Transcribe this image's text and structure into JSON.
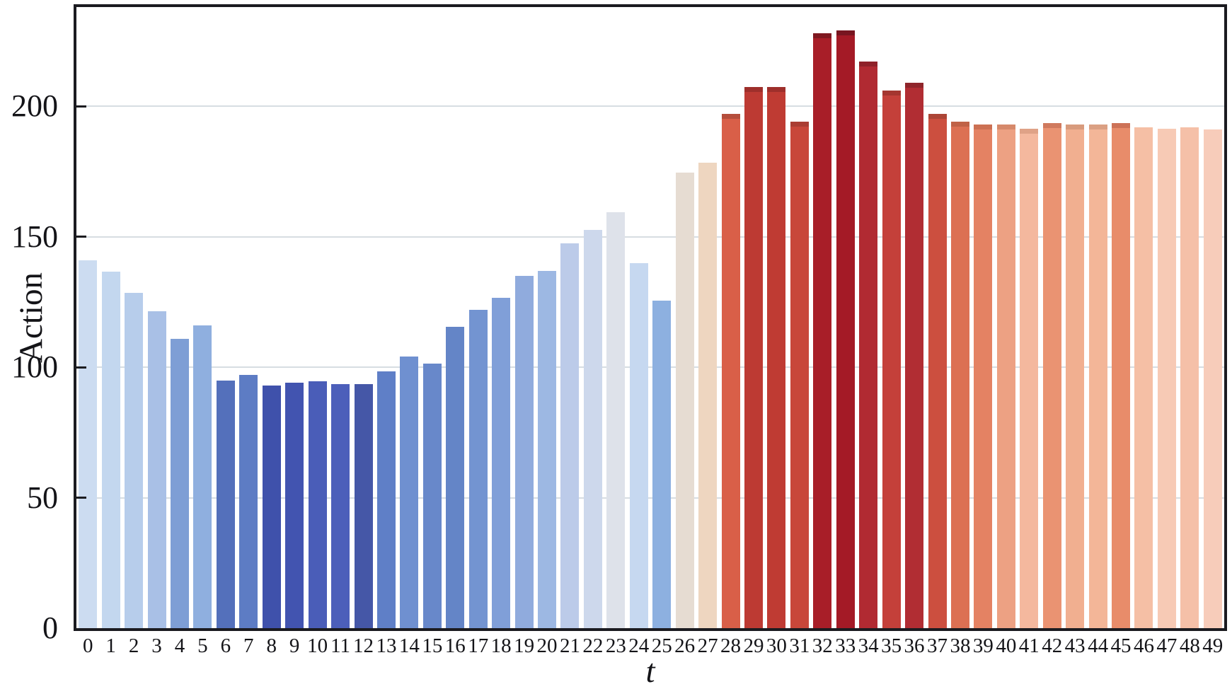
{
  "chart_data": {
    "type": "bar",
    "title": "",
    "xlabel": "t",
    "ylabel": "Action",
    "x": [
      0,
      1,
      2,
      3,
      4,
      5,
      6,
      7,
      8,
      9,
      10,
      11,
      12,
      13,
      14,
      15,
      16,
      17,
      18,
      19,
      20,
      21,
      22,
      23,
      24,
      25,
      26,
      27,
      28,
      29,
      30,
      31,
      32,
      33,
      34,
      35,
      36,
      37,
      38,
      39,
      40,
      41,
      42,
      43,
      44,
      45,
      46,
      47,
      48,
      49
    ],
    "values": [
      141,
      136.5,
      128.5,
      121.5,
      111,
      116,
      95,
      97,
      93,
      94,
      94.5,
      93.5,
      93.5,
      98.5,
      104,
      101.5,
      115.5,
      122,
      126.5,
      135,
      137,
      147.5,
      152.5,
      159.5,
      140,
      125.5,
      174.5,
      178.5,
      197,
      207.5,
      207.5,
      194,
      228,
      229,
      217,
      206,
      209,
      197,
      194,
      193,
      193,
      191.5,
      193.5,
      193,
      193,
      193.5,
      192,
      191.5,
      192,
      191
    ],
    "bar_colors": [
      "#ccdcf1",
      "#c3d7ef",
      "#b7cdeb",
      "#a9c0e6",
      "#7e9ed5",
      "#8fafdf",
      "#5470bb",
      "#5d7cc4",
      "#3f51ab",
      "#4254b0",
      "#4a5db8",
      "#4c5fba",
      "#4557a7",
      "#5f7fc7",
      "#6f90d0",
      "#6888ca",
      "#6485c7",
      "#7394d1",
      "#809fd8",
      "#90abdd",
      "#9db8e3",
      "#bccbe9",
      "#cdd8ec",
      "#dee2ea",
      "#c6d8f0",
      "#8db0e0",
      "#e6dcd2",
      "#eed6c0",
      "#d95f48",
      "#bd3a33",
      "#bf3b33",
      "#c8473a",
      "#a81e28",
      "#a41a26",
      "#b12a32",
      "#c4403a",
      "#b12d33",
      "#cc4f3f",
      "#dc7053",
      "#e48263",
      "#eda183",
      "#f4b89e",
      "#ea9372",
      "#f1af90",
      "#f3b698",
      "#e88c6a",
      "#f5bfa5",
      "#f7cab5",
      "#f5c0a8",
      "#f7ccba"
    ],
    "cap_colors": [
      null,
      null,
      null,
      null,
      null,
      null,
      null,
      null,
      null,
      null,
      null,
      null,
      null,
      null,
      null,
      null,
      null,
      null,
      null,
      null,
      null,
      null,
      null,
      null,
      null,
      null,
      null,
      null,
      "#b54e3c",
      "#9e2f2b",
      "#9e2f2b",
      "#aa3d33",
      "#7f1820",
      "#781520",
      "#8f2129",
      "#a53630",
      "#8f252b",
      "#ac4536",
      "#c06247",
      "#cc7053",
      "#d6896b",
      "#dfa287",
      "#d07a5e",
      "#d89b7d",
      "#dba083",
      "#cd7257",
      null,
      null,
      null,
      null
    ],
    "yticks": [
      0,
      50,
      100,
      150,
      200
    ],
    "ylim": [
      0,
      238
    ],
    "grid": "horizontal",
    "legend": "none",
    "axis_color": "#1b1b20",
    "grid_color": "#d7dde2",
    "background": "#ffffff"
  }
}
